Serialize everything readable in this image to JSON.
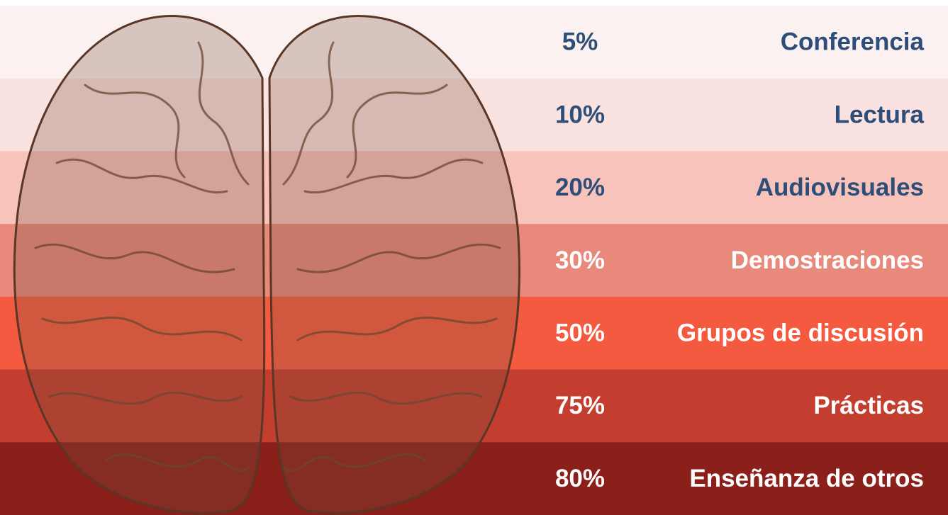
{
  "rows": [
    {
      "percent": "5%",
      "label": "Conferencia",
      "color": "#fcf1f1",
      "text_color": "#2c4e78"
    },
    {
      "percent": "10%",
      "label": "Lectura",
      "color": "#fae2e0",
      "text_color": "#2c4e78"
    },
    {
      "percent": "20%",
      "label": "Audiovisuales",
      "color": "#f7c3bb",
      "text_color": "#2c4e78"
    },
    {
      "percent": "30%",
      "label": "Demostraciones",
      "color": "#e8897c",
      "text_color": "#ffffff"
    },
    {
      "percent": "50%",
      "label": "Grupos de discusión",
      "color": "#f45a3f",
      "text_color": "#ffffff"
    },
    {
      "percent": "75%",
      "label": "Prácticas",
      "color": "#c43e2f",
      "text_color": "#ffffff"
    },
    {
      "percent": "80%",
      "label": "Enseñanza de otros",
      "color": "#8b1f1a",
      "text_color": "#ffffff"
    }
  ]
}
